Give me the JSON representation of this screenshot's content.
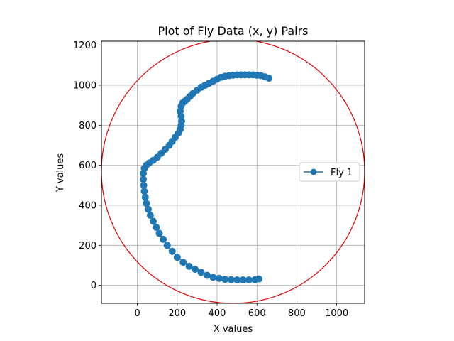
{
  "chart_data": {
    "type": "scatter",
    "title": "Plot of Fly Data (x, y) Pairs",
    "xlabel": "X values",
    "ylabel": "Y values",
    "xlim": [
      -180,
      1140
    ],
    "ylim": [
      -90,
      1220
    ],
    "xticks": [
      0,
      200,
      400,
      600,
      800,
      1000
    ],
    "yticks": [
      0,
      200,
      400,
      600,
      800,
      1000,
      1200
    ],
    "grid": true,
    "legend_position": "right",
    "series": [
      {
        "name": "Fly 1",
        "color": "#1f77b4",
        "marker": "circle",
        "line": true,
        "x": [
          660,
          640,
          620,
          600,
          580,
          560,
          540,
          520,
          500,
          480,
          460,
          440,
          420,
          400,
          380,
          360,
          340,
          320,
          300,
          280,
          265,
          250,
          238,
          228,
          220,
          215,
          220,
          222,
          220,
          215,
          205,
          190,
          175,
          160,
          140,
          120,
          100,
          80,
          60,
          45,
          35,
          30,
          30,
          32,
          35,
          40,
          45,
          55,
          65,
          80,
          95,
          110,
          130,
          150,
          175,
          200,
          230,
          260,
          290,
          320,
          350,
          380,
          410,
          440,
          470,
          500,
          530,
          560,
          590,
          610
        ],
        "y": [
          1035,
          1042,
          1048,
          1050,
          1052,
          1052,
          1052,
          1052,
          1052,
          1050,
          1048,
          1045,
          1040,
          1030,
          1020,
          1010,
          1000,
          990,
          975,
          960,
          945,
          930,
          920,
          912,
          895,
          870,
          845,
          820,
          800,
          780,
          760,
          740,
          720,
          700,
          680,
          660,
          640,
          625,
          612,
          600,
          585,
          560,
          530,
          500,
          470,
          440,
          410,
          380,
          350,
          320,
          290,
          260,
          230,
          200,
          170,
          140,
          115,
          95,
          80,
          65,
          50,
          40,
          35,
          30,
          28,
          27,
          27,
          27,
          28,
          32
        ]
      }
    ],
    "annotations": [
      {
        "shape": "circle",
        "center": [
          480,
          570
        ],
        "radius": 660,
        "color": "#e00000"
      }
    ]
  }
}
